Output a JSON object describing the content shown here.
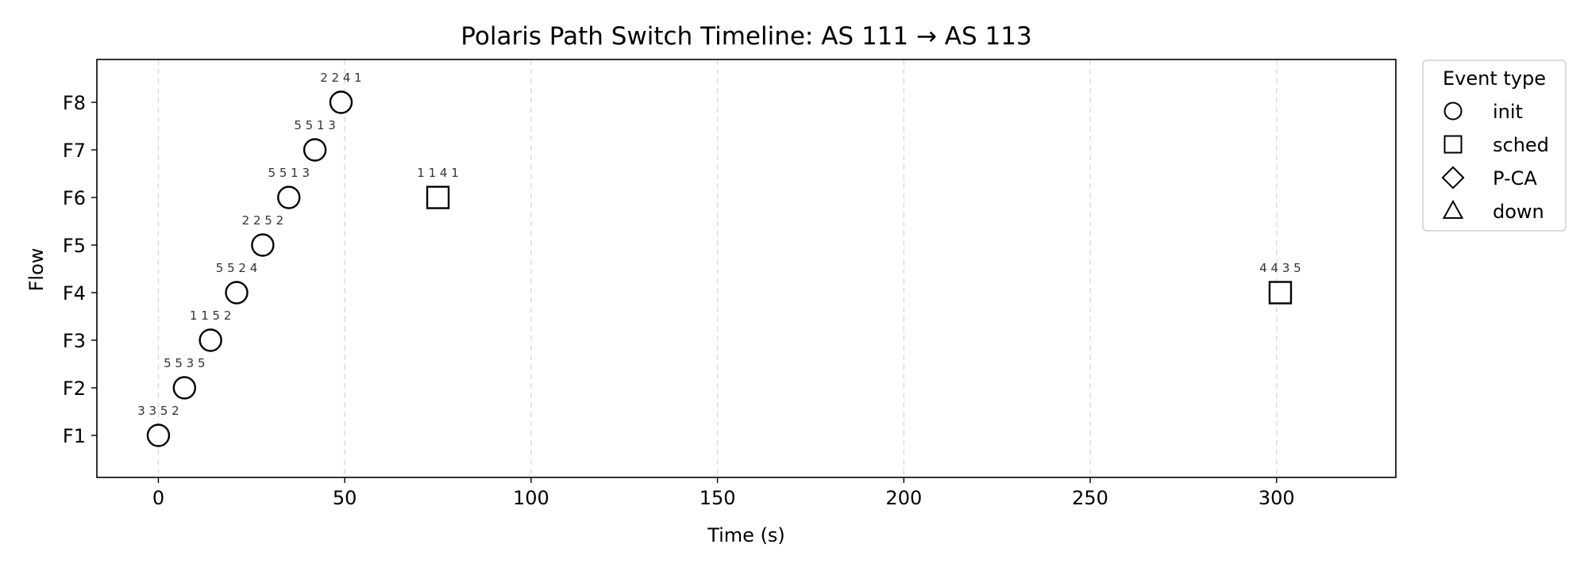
{
  "chart_data": {
    "type": "scatter",
    "title": "Polaris Path Switch Timeline: AS 111 → AS 113",
    "xlabel": "Time (s)",
    "ylabel": "Flow",
    "xlim": [
      -16.5,
      332
    ],
    "x_ticks": [
      0,
      50,
      100,
      150,
      200,
      250,
      300
    ],
    "flows": [
      "F1",
      "F2",
      "F3",
      "F4",
      "F5",
      "F6",
      "F7",
      "F8"
    ],
    "grid": "vertical dashed",
    "legend": {
      "title": "Event type",
      "placement": "outside-right",
      "entries": [
        {
          "label": "init",
          "marker": "circle"
        },
        {
          "label": "sched",
          "marker": "square"
        },
        {
          "label": "P-CA",
          "marker": "diamond"
        },
        {
          "label": "down",
          "marker": "triangle"
        }
      ]
    },
    "points": [
      {
        "flow": "F1",
        "x": 0,
        "event": "init",
        "label": "3 3 5 2"
      },
      {
        "flow": "F2",
        "x": 7,
        "event": "init",
        "label": "5 5 3 5"
      },
      {
        "flow": "F3",
        "x": 14,
        "event": "init",
        "label": "1 1 5 2"
      },
      {
        "flow": "F4",
        "x": 21,
        "event": "init",
        "label": "5 5 2 4"
      },
      {
        "flow": "F5",
        "x": 28,
        "event": "init",
        "label": "2 2 5 2"
      },
      {
        "flow": "F6",
        "x": 35,
        "event": "init",
        "label": "5 5 1 3"
      },
      {
        "flow": "F7",
        "x": 42,
        "event": "init",
        "label": "5 5 1 3"
      },
      {
        "flow": "F8",
        "x": 49,
        "event": "init",
        "label": "2 2 4 1"
      },
      {
        "flow": "F6",
        "x": 75,
        "event": "sched",
        "label": "1 1 4 1"
      },
      {
        "flow": "F4",
        "x": 301,
        "event": "sched",
        "label": "4 4 3 5"
      }
    ],
    "colors": {
      "marker_edge": "#000000",
      "marker_fill": "#ffffff",
      "grid": "#dddddd",
      "axis": "#000000"
    }
  }
}
